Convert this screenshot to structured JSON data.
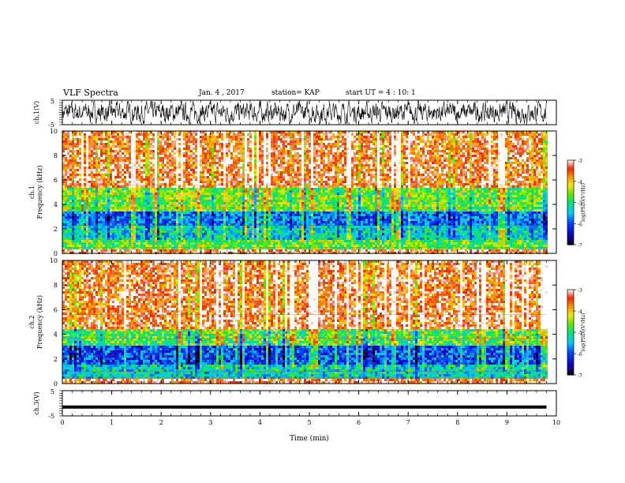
{
  "header": {
    "title": "VLF Spectra",
    "date": "Jan. 4 , 2017",
    "station": "station= KAP",
    "start": "start UT =  4 : 10: 1"
  },
  "chart_data": [
    {
      "type": "line",
      "title": "",
      "ylabel": "ch.1(V)",
      "ylim": [
        -5,
        5
      ],
      "yticks": [
        "5",
        "-5"
      ],
      "xlim": [
        0,
        10
      ],
      "series": [
        {
          "color": "#000000",
          "description_values": "noisy waveform oscillating roughly between -4 and 4 V"
        }
      ]
    },
    {
      "type": "heatmap",
      "ylabel_line1": "ch.1",
      "ylabel_line2": "Frequency (kHz)",
      "ylim": [
        0,
        10
      ],
      "yticks": [
        "0",
        "2",
        "4",
        "6",
        "8",
        "10"
      ],
      "xlim": [
        0,
        10
      ],
      "colorbar": {
        "label": "log(PSD)(V²/Hz)",
        "ticks": [
          "-3",
          "-4",
          "-5",
          "-6",
          "-7"
        ],
        "range": [
          -7,
          -3
        ]
      },
      "bands_khz_to_level": [
        [
          0,
          0.4,
          -3.3
        ],
        [
          0.4,
          1.2,
          -4.7
        ],
        [
          1.2,
          2.4,
          -5.3
        ],
        [
          2.4,
          3.6,
          -5.8
        ],
        [
          3.6,
          5.5,
          -4.6
        ],
        [
          5.5,
          10,
          -3.4
        ]
      ]
    },
    {
      "type": "heatmap",
      "ylabel_line1": "ch.2",
      "ylabel_line2": "Frequency (kHz)",
      "ylim": [
        0,
        10
      ],
      "yticks": [
        "0",
        "2",
        "4",
        "6",
        "8",
        "10"
      ],
      "xlim": [
        0,
        10
      ],
      "colorbar": {
        "label": "log(PSD)(V²/Hz)",
        "ticks": [
          "-3",
          "-4",
          "-5",
          "-6",
          "-7"
        ],
        "range": [
          -7,
          -3
        ]
      },
      "bands_khz_to_level": [
        [
          0,
          0.4,
          -3.3
        ],
        [
          0.4,
          1.6,
          -5.3
        ],
        [
          1.6,
          3.2,
          -6.0
        ],
        [
          3.2,
          4.5,
          -4.8
        ],
        [
          4.5,
          10,
          -3.4
        ]
      ]
    },
    {
      "type": "line",
      "ylabel": "ch.3(V)",
      "ylim": [
        -5,
        5
      ],
      "yticks": [
        "5",
        "-5"
      ],
      "xlim": [
        0,
        10
      ],
      "xlabel": "Time (min)",
      "xticks": [
        "0",
        "1",
        "2",
        "3",
        "4",
        "5",
        "6",
        "7",
        "8",
        "9",
        "10"
      ],
      "series": [
        {
          "color": "#000000",
          "constant_value": -1.5
        }
      ]
    }
  ]
}
